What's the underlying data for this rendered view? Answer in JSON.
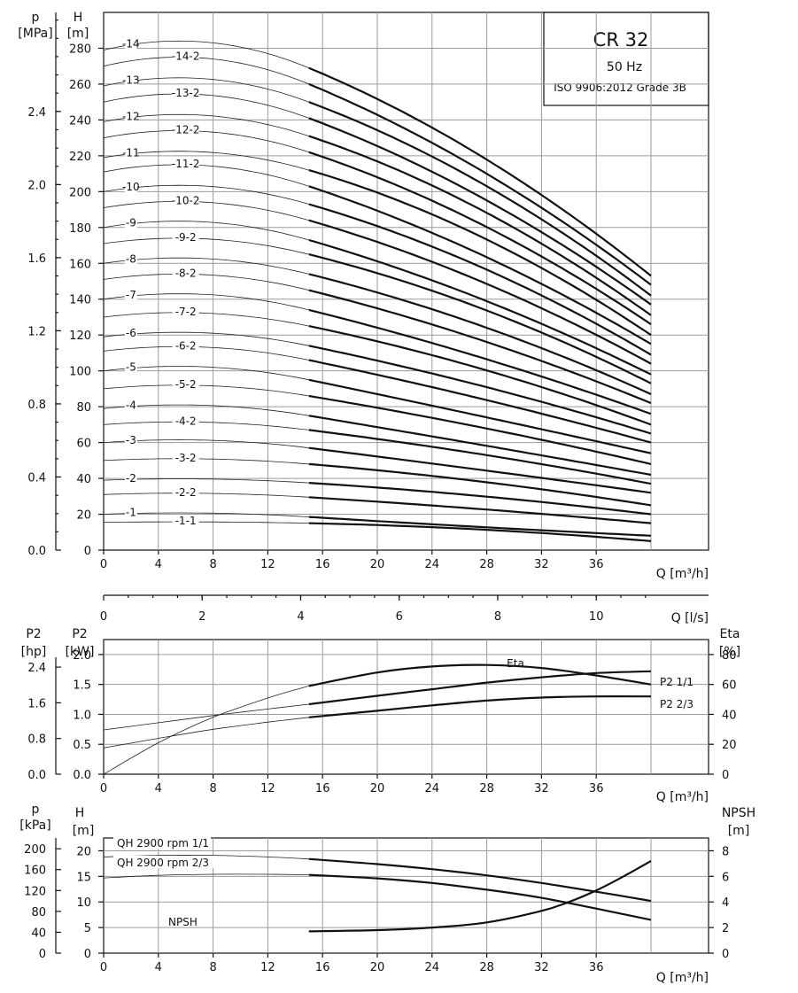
{
  "title_box": {
    "title": "CR 32",
    "frequency": "50 Hz",
    "standard": "ISO 9906:2012 Grade 3B"
  },
  "colors": {
    "curve": "#111111",
    "grid": "#9a9a9a",
    "background": "#ffffff"
  },
  "chart_data": [
    {
      "type": "line",
      "name": "head",
      "xlabel": "Q [m³/h]",
      "x_ticks": [
        0,
        4,
        8,
        12,
        16,
        20,
        24,
        28,
        32,
        36
      ],
      "xlim": [
        0,
        44
      ],
      "ylabel": "H [m]",
      "y_ticks": [
        0,
        20,
        40,
        60,
        80,
        100,
        120,
        140,
        160,
        180,
        200,
        220,
        240,
        260,
        280
      ],
      "ylim": [
        0,
        300
      ],
      "secondary_y_label": "p [MPa]",
      "secondary_y_ticks": [
        "0.0",
        "0.4",
        "0.8",
        "1.2",
        "1.6",
        "2.0",
        "2.4"
      ],
      "secondary_x_label": "Q [l/s]",
      "secondary_x_ticks": [
        0,
        2,
        4,
        6,
        8,
        10
      ],
      "grid": true,
      "curve_model": {
        "q_peak": 5.5,
        "q_start_bold": 15,
        "q_end": 40
      },
      "series": [
        {
          "name": "-1-1",
          "shutoff": 15.5,
          "at15": 15,
          "at40": 5
        },
        {
          "name": "-1",
          "shutoff": 20,
          "at15": 18.5,
          "at40": 8
        },
        {
          "name": "-2-2",
          "shutoff": 31,
          "at15": 29.5,
          "at40": 15
        },
        {
          "name": "-2",
          "shutoff": 39,
          "at15": 37.5,
          "at40": 20
        },
        {
          "name": "-3-2",
          "shutoff": 50,
          "at15": 48,
          "at40": 25
        },
        {
          "name": "-3",
          "shutoff": 60,
          "at15": 57,
          "at40": 32
        },
        {
          "name": "-4-2",
          "shutoff": 70,
          "at15": 67,
          "at40": 37
        },
        {
          "name": "-4",
          "shutoff": 79,
          "at15": 75,
          "at40": 42
        },
        {
          "name": "-5-2",
          "shutoff": 90,
          "at15": 86,
          "at40": 48
        },
        {
          "name": "-5",
          "shutoff": 100,
          "at15": 95,
          "at40": 54
        },
        {
          "name": "-6-2",
          "shutoff": 111,
          "at15": 106,
          "at40": 60
        },
        {
          "name": "-6",
          "shutoff": 119,
          "at15": 114,
          "at40": 65
        },
        {
          "name": "-7-2",
          "shutoff": 130,
          "at15": 125,
          "at40": 70
        },
        {
          "name": "-7",
          "shutoff": 140,
          "at15": 134,
          "at40": 76
        },
        {
          "name": "-8-2",
          "shutoff": 151,
          "at15": 145,
          "at40": 82
        },
        {
          "name": "-8",
          "shutoff": 160,
          "at15": 154,
          "at40": 87
        },
        {
          "name": "-9-2",
          "shutoff": 171,
          "at15": 165,
          "at40": 93
        },
        {
          "name": "-9",
          "shutoff": 180,
          "at15": 173,
          "at40": 98
        },
        {
          "name": "-10-2",
          "shutoff": 191,
          "at15": 184,
          "at40": 104
        },
        {
          "name": "-10",
          "shutoff": 200,
          "at15": 193,
          "at40": 109
        },
        {
          "name": "-11-2",
          "shutoff": 211,
          "at15": 203,
          "at40": 115
        },
        {
          "name": "-11",
          "shutoff": 219,
          "at15": 212,
          "at40": 120
        },
        {
          "name": "-12-2",
          "shutoff": 230,
          "at15": 222,
          "at40": 126
        },
        {
          "name": "-12",
          "shutoff": 239,
          "at15": 231,
          "at40": 131
        },
        {
          "name": "-13-2",
          "shutoff": 250,
          "at15": 241,
          "at40": 137
        },
        {
          "name": "-13",
          "shutoff": 259,
          "at15": 250,
          "at40": 142
        },
        {
          "name": "-14-2",
          "shutoff": 270,
          "at15": 260,
          "at40": 148
        },
        {
          "name": "-14",
          "shutoff": 279,
          "at15": 269,
          "at40": 153
        }
      ]
    },
    {
      "type": "line",
      "name": "power_efficiency",
      "xlabel": "Q [m³/h]",
      "x_ticks": [
        0,
        4,
        8,
        12,
        16,
        20,
        24,
        28,
        32,
        36
      ],
      "left_label": "P2 [kW]",
      "left_ticks": [
        "0.0",
        "0.5",
        "1.0",
        "1.5",
        "2.0"
      ],
      "left_lim": [
        0,
        2.25
      ],
      "hp_label": "P2 [hp]",
      "hp_ticks": [
        "0.0",
        "0.8",
        "1.6",
        "2.4"
      ],
      "right_label": "Eta [%]",
      "right_ticks": [
        0,
        20,
        40,
        60,
        80
      ],
      "series": [
        {
          "name": "Eta",
          "axis": "percent",
          "x": [
            0,
            4,
            8,
            12,
            15,
            20,
            24,
            28,
            32,
            36,
            40
          ],
          "y": [
            0,
            21,
            38,
            51,
            59,
            68,
            72,
            73,
            71,
            66,
            60
          ]
        },
        {
          "name": "P2 1/1",
          "axis": "kW",
          "x": [
            0,
            4,
            8,
            12,
            15,
            20,
            24,
            28,
            32,
            36,
            40
          ],
          "y": [
            0.74,
            0.86,
            0.98,
            1.09,
            1.17,
            1.31,
            1.42,
            1.53,
            1.62,
            1.69,
            1.72
          ]
        },
        {
          "name": "P2 2/3",
          "axis": "kW",
          "x": [
            0,
            4,
            8,
            12,
            15,
            20,
            24,
            28,
            32,
            36,
            40
          ],
          "y": [
            0.44,
            0.6,
            0.75,
            0.87,
            0.95,
            1.06,
            1.15,
            1.23,
            1.28,
            1.3,
            1.3
          ]
        }
      ]
    },
    {
      "type": "line",
      "name": "npsh",
      "xlabel": "Q [m³/h]",
      "x_ticks": [
        0,
        4,
        8,
        12,
        16,
        20,
        24,
        28,
        32,
        36
      ],
      "left_label": "H [m]",
      "left_ticks": [
        0,
        5,
        10,
        15,
        20
      ],
      "left_lim": [
        0,
        22.5
      ],
      "kpa_label": "p [kPa]",
      "kpa_ticks": [
        0,
        40,
        80,
        120,
        160,
        200
      ],
      "right_label": "NPSH [m]",
      "right_ticks": [
        0,
        2,
        4,
        6,
        8
      ],
      "series": [
        {
          "name": "QH 2900 rpm 1/1",
          "axis": "m",
          "x": [
            0,
            4,
            8,
            12,
            15,
            20,
            24,
            28,
            32,
            36,
            40
          ],
          "y": [
            18.8,
            19.1,
            19.1,
            18.8,
            18.4,
            17.4,
            16.4,
            15.2,
            13.7,
            12.0,
            10.2
          ]
        },
        {
          "name": "QH 2900 rpm 2/3",
          "axis": "m",
          "x": [
            0,
            4,
            8,
            12,
            15,
            20,
            24,
            28,
            32,
            36,
            40
          ],
          "y": [
            14.7,
            15.2,
            15.4,
            15.4,
            15.3,
            14.6,
            13.7,
            12.4,
            10.8,
            8.7,
            6.5
          ]
        },
        {
          "name": "NPSH",
          "axis": "npsh",
          "x": [
            15,
            20,
            24,
            28,
            32,
            34,
            36,
            38,
            40
          ],
          "y": [
            1.7,
            1.8,
            2.0,
            2.4,
            3.3,
            4.0,
            4.9,
            6.0,
            7.2
          ]
        }
      ]
    }
  ]
}
